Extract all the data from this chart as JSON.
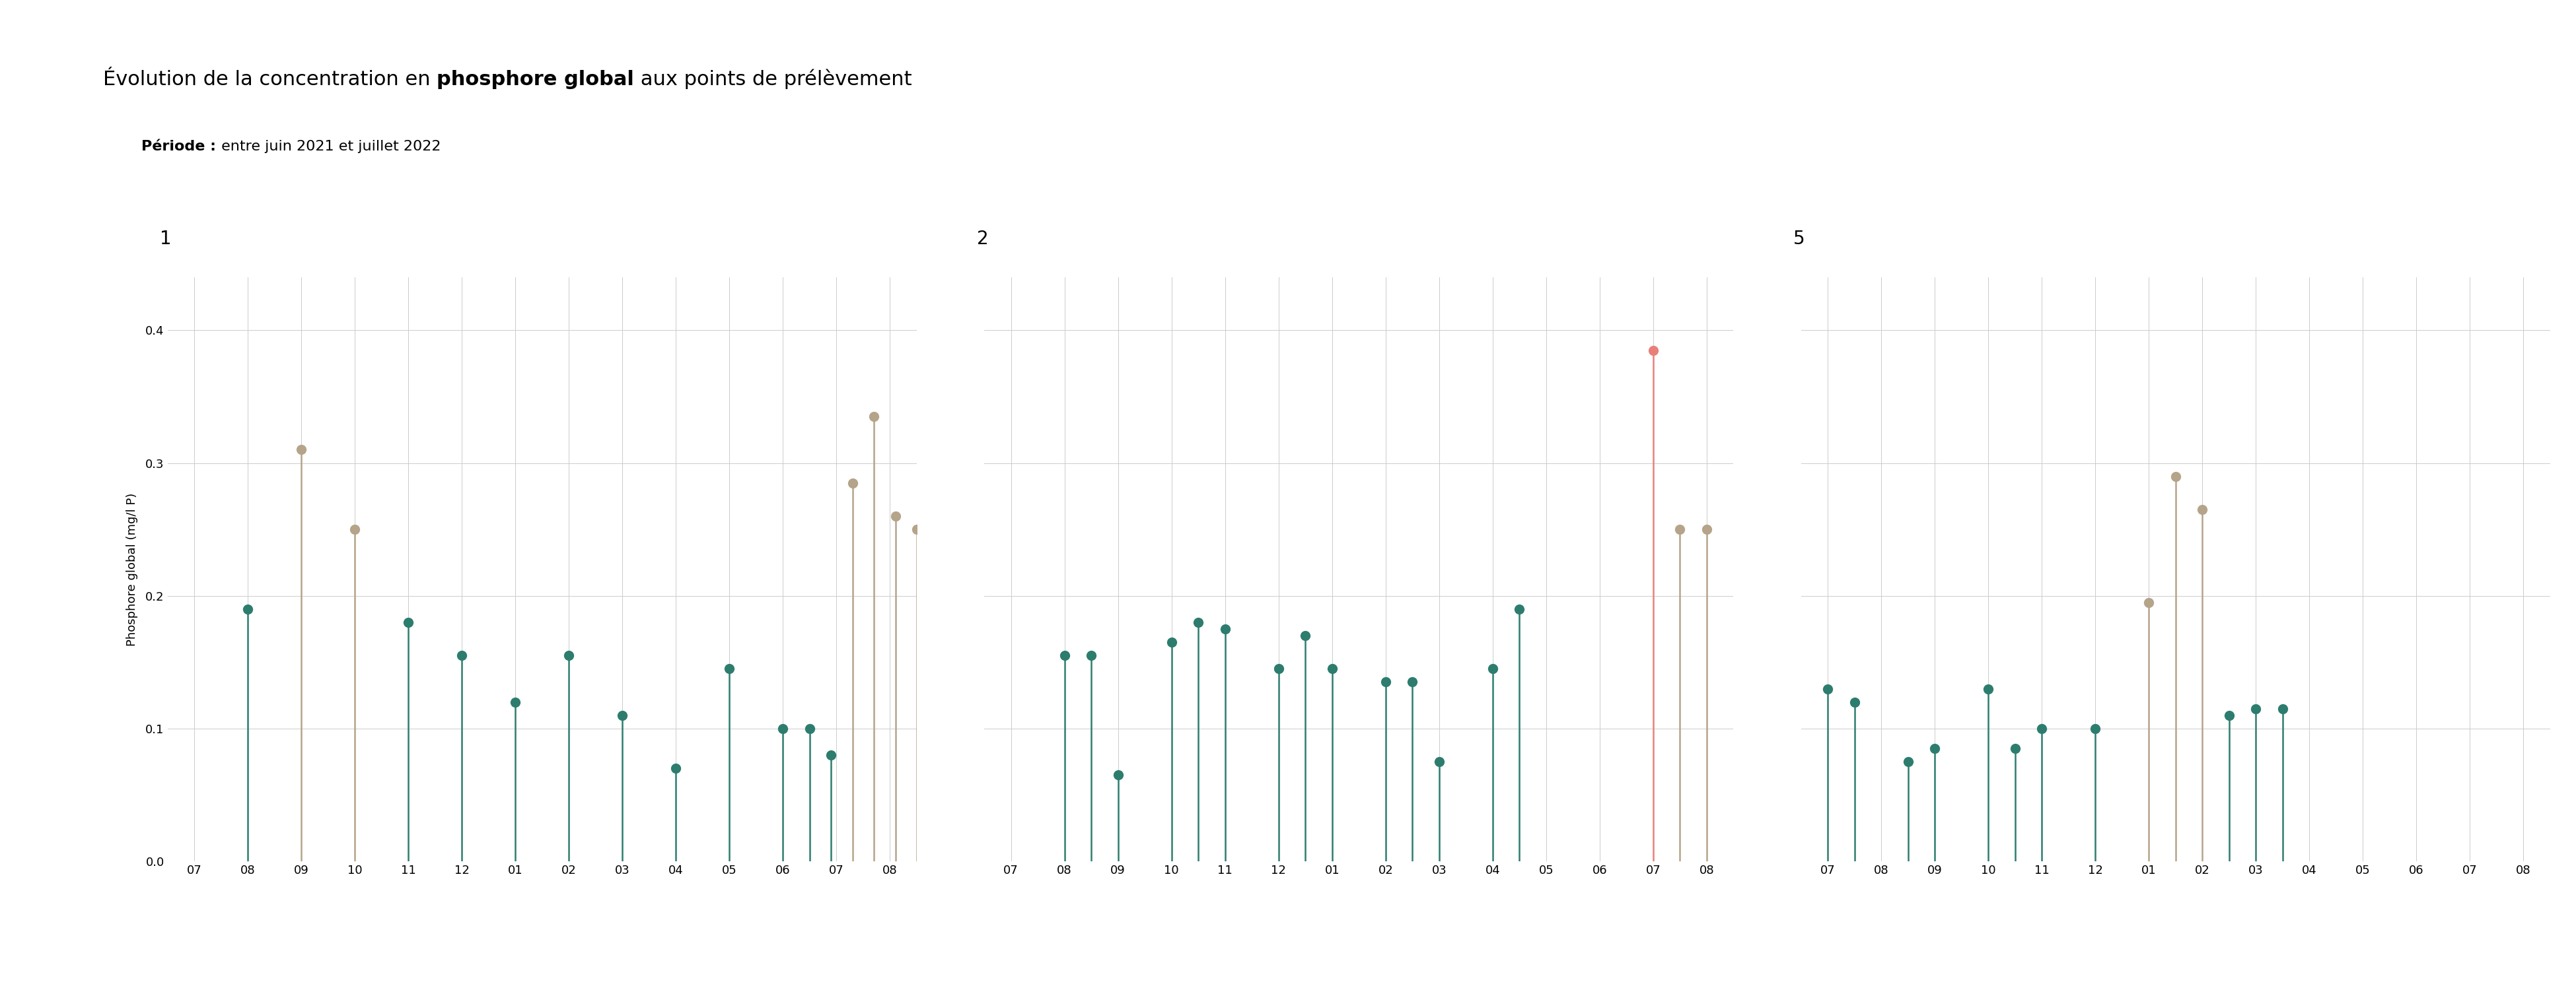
{
  "title_part1": "Évolution de la concentration en ",
  "title_bold": "phosphore global",
  "title_part2": " aux points de prélèvement",
  "subtitle_bold": "Période :",
  "subtitle_normal": " entre juin 2021 et juillet 2022",
  "ylabel": "Phosphore global (mg/l P)",
  "ylim": [
    0.0,
    0.44
  ],
  "yticks": [
    0.0,
    0.1,
    0.2,
    0.3,
    0.4
  ],
  "ytick_labels": [
    "0.0",
    "0.1",
    "0.2",
    "0.3",
    "0.4"
  ],
  "color_green": "#2d7d6e",
  "color_tan": "#b5a48a",
  "color_pink": "#e8807a",
  "background_color": "#ffffff",
  "grid_color": "#cccccc",
  "title_fontsize": 22,
  "subtitle_fontsize": 16,
  "label_fontsize": 13,
  "tick_fontsize": 13,
  "subplot_label_fontsize": 20,
  "xtick_labels": [
    "07",
    "08",
    "09",
    "10",
    "11",
    "12",
    "01",
    "02",
    "03",
    "04",
    "05",
    "06",
    "07",
    "08"
  ],
  "subplot1_label": "1",
  "subplot2_label": "2",
  "subplot3_label": "5",
  "s1_positions": [
    1,
    2,
    3,
    4,
    5,
    6,
    7,
    8,
    9,
    10,
    11,
    11.5,
    11.9,
    12.3,
    12.7,
    13.1
  ],
  "s1_values": [
    0.19,
    0.31,
    0.25,
    0.18,
    0.155,
    0.12,
    0.155,
    0.11,
    0.07,
    0.145,
    0.1,
    0.1,
    0.08,
    0.285,
    0.335,
    0.26
  ],
  "s1_colors": [
    "#2d7d6e",
    "#b5a48a",
    "#b5a48a",
    "#2d7d6e",
    "#2d7d6e",
    "#2d7d6e",
    "#2d7d6e",
    "#2d7d6e",
    "#2d7d6e",
    "#2d7d6e",
    "#2d7d6e",
    "#2d7d6e",
    "#2d7d6e",
    "#b5a48a",
    "#b5a48a",
    "#b5a48a"
  ],
  "s1_extra_pos": [
    13.5
  ],
  "s1_extra_val": [
    0.25
  ],
  "s1_extra_col": [
    "#b5a48a"
  ],
  "s2_positions": [
    1,
    1.5,
    2,
    3,
    3.5,
    4,
    5,
    5.5,
    6,
    7,
    7.5,
    8,
    9,
    9.5,
    12,
    12.5,
    13
  ],
  "s2_values": [
    0.155,
    0.155,
    0.065,
    0.165,
    0.18,
    0.175,
    0.145,
    0.17,
    0.145,
    0.135,
    0.135,
    0.075,
    0.145,
    0.19,
    0.385,
    0.25,
    0.25
  ],
  "s2_colors": [
    "#2d7d6e",
    "#2d7d6e",
    "#2d7d6e",
    "#2d7d6e",
    "#2d7d6e",
    "#2d7d6e",
    "#2d7d6e",
    "#2d7d6e",
    "#2d7d6e",
    "#2d7d6e",
    "#2d7d6e",
    "#2d7d6e",
    "#2d7d6e",
    "#2d7d6e",
    "#e8807a",
    "#b5a48a",
    "#b5a48a"
  ],
  "s3_positions": [
    0,
    0.5,
    1.5,
    2,
    3,
    3.5,
    4,
    5,
    6,
    6.5,
    7,
    7.5,
    8,
    8.5
  ],
  "s3_values": [
    0.13,
    0.12,
    0.075,
    0.085,
    0.13,
    0.085,
    0.1,
    0.1,
    0.195,
    0.29,
    0.265,
    0.11,
    0.115,
    0.115
  ],
  "s3_colors": [
    "#2d7d6e",
    "#2d7d6e",
    "#2d7d6e",
    "#2d7d6e",
    "#2d7d6e",
    "#2d7d6e",
    "#2d7d6e",
    "#2d7d6e",
    "#b5a48a",
    "#b5a48a",
    "#b5a48a",
    "#2d7d6e",
    "#2d7d6e",
    "#2d7d6e"
  ]
}
